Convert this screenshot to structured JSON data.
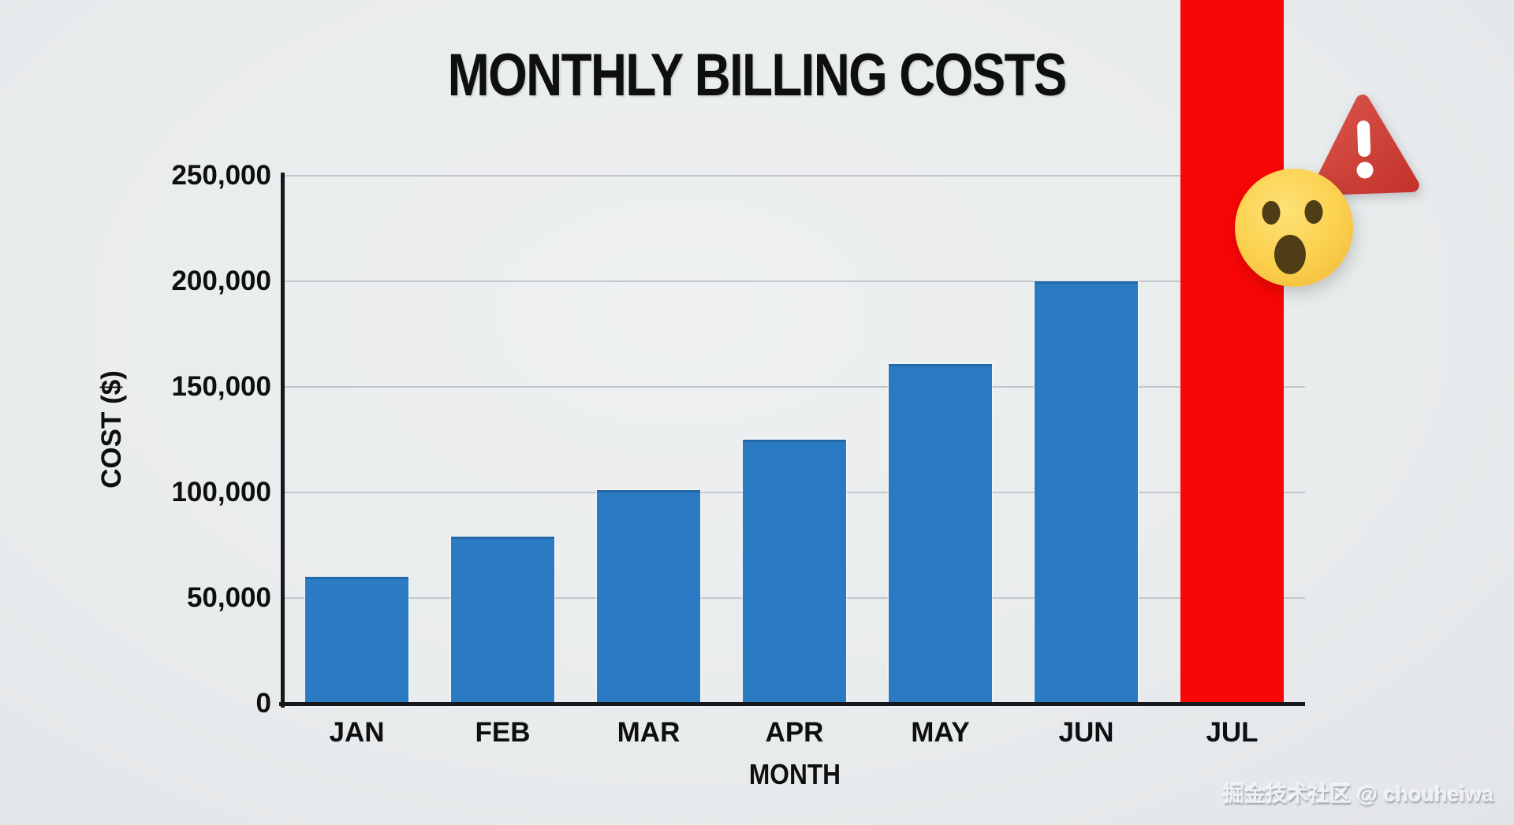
{
  "chart_data": {
    "type": "bar",
    "title": "MONTHLY BILLING COSTS",
    "xlabel": "MONTH",
    "ylabel": "COST ($)",
    "categories": [
      "JAN",
      "FEB",
      "MAR",
      "APR",
      "MAY",
      "JUN",
      "JUL"
    ],
    "values": [
      60000,
      79000,
      101000,
      125000,
      161000,
      200000,
      null
    ],
    "jul_overflow": true,
    "jul_note": "JUL bar runs past the 250,000 axis maximum and off the top edge of the image (>330,000 as drawn); exact value not shown",
    "ylim": [
      0,
      250000
    ],
    "ytick_values": [
      0,
      50000,
      100000,
      150000,
      200000,
      250000
    ],
    "ytick_labels": [
      "0",
      "50,000",
      "100,000",
      "150,000",
      "200,000",
      "250,000"
    ],
    "grid": "horizontal gridlines every 50,000",
    "legend": "none",
    "bar_colors": [
      "#2b7bc4",
      "#2b7bc4",
      "#2b7bc4",
      "#2b7bc4",
      "#2b7bc4",
      "#2b7bc4",
      "#f90606"
    ],
    "annotations": [
      {
        "name": "shocked-face-emoji",
        "desc": "yellow astonished-face emoji overlapping the upper right of the JUL bar"
      },
      {
        "name": "warning-triangle-icon",
        "desc": "red rounded triangle with white exclamation mark beside the JUL bar"
      }
    ]
  },
  "watermark": "掘金技术社区 @ chouheiwa",
  "colors": {
    "background": "#e9eced",
    "bar_blue": "#2b7bc4",
    "bar_red": "#f90606",
    "axis": "#17181b",
    "gridline": "#c3c7cb",
    "text": "#0e0f10",
    "emoji_face": "#fbd14e",
    "emoji_features": "#4e3d15",
    "warning_red": "#cf3b33",
    "watermark_text": "#eef0f1"
  }
}
